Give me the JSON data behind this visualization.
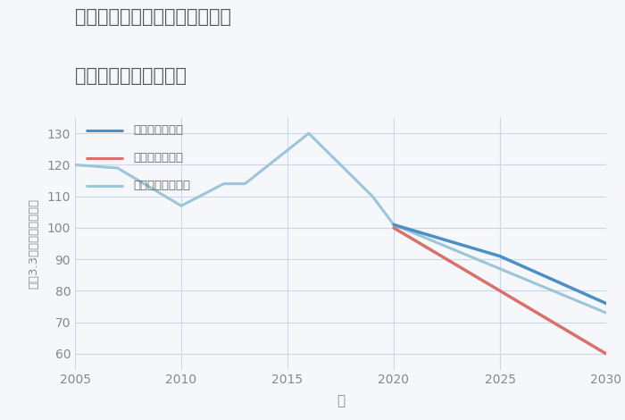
{
  "title_line1": "埼玉県比企郡川島町上小見野の",
  "title_line2": "中古戸建ての価格推移",
  "xlabel": "年",
  "ylabel": "平（3.3㎡）単価（万円）",
  "background_color": "#f5f7fa",
  "plot_background": "#f5f7fa",
  "good_scenario": {
    "label": "グッドシナリオ",
    "color": "#4a90c4",
    "years": [
      2020,
      2025,
      2030
    ],
    "values": [
      101,
      91,
      76
    ]
  },
  "bad_scenario": {
    "label": "バッドシナリオ",
    "color": "#d9706a",
    "years": [
      2020,
      2025,
      2030
    ],
    "values": [
      100,
      80,
      60
    ]
  },
  "normal_scenario": {
    "label": "ノーマルシナリオ",
    "color": "#9cc5d8",
    "years": [
      2005,
      2007,
      2010,
      2012,
      2013,
      2016,
      2019,
      2020,
      2025,
      2030
    ],
    "values": [
      120,
      119,
      107,
      114,
      114,
      130,
      110,
      101,
      87,
      73
    ]
  },
  "xlim": [
    2005,
    2030
  ],
  "ylim": [
    55,
    135
  ],
  "yticks": [
    60,
    70,
    80,
    90,
    100,
    110,
    120,
    130
  ],
  "xticks": [
    2005,
    2010,
    2015,
    2020,
    2025,
    2030
  ],
  "grid_color": "#c8d8e8",
  "title_color": "#555555",
  "tick_color": "#888888",
  "label_color": "#666666"
}
